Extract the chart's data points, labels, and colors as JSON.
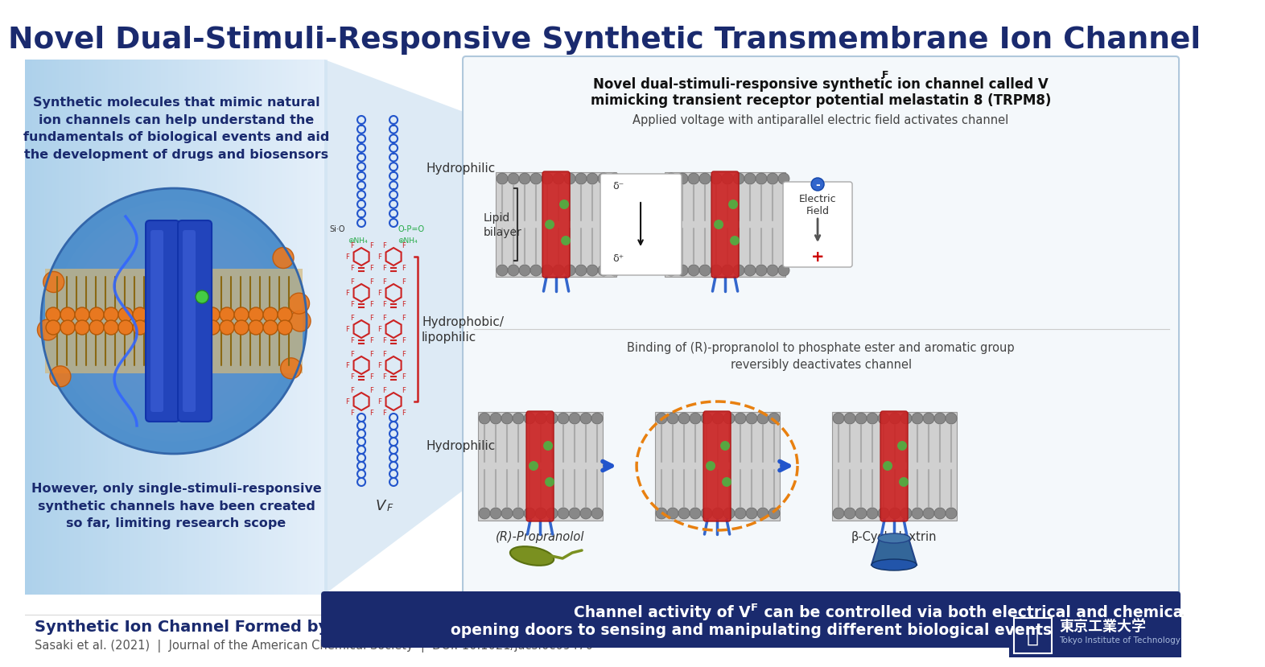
{
  "title": "Novel Dual-Stimuli-Responsive Synthetic Transmembrane Ion Channel",
  "title_color": "#1a2a6e",
  "bg_color": "#ffffff",
  "left_text_top": "Synthetic molecules that mimic natural\nion channels can help understand the\nfundamentals of biological events and aid\nthe development of drugs and biosensors",
  "left_text_bottom": "However, only single-stimuli-responsive\nsynthetic channels have been created\nso far, limiting research scope",
  "right_title_line1": "Novel dual-stimuli-responsive synthetic ion channel called V",
  "right_title_line1_sub": "F",
  "right_title_line2": "mimicking transient receptor potential melastatin 8 (TRPM8)",
  "voltage_caption": "Applied voltage with antiparallel electric field activates channel",
  "binding_caption": "Binding of (R)-propranolol to phosphate ester and aromatic group\nreversibly deactivates channel",
  "label_hydrophilic1": "Hydrophilic",
  "label_hydrophobic": "Hydrophobic/\nlipophilic",
  "label_hydrophilic2": "Hydrophilic",
  "label_vf": "V",
  "label_vf_sub": "F",
  "label_lipid": "Lipid\nbilayer",
  "label_propranolol": "(R)-Propranolol",
  "label_cyclodextrin": "β-Cyclodextrin",
  "label_electric": "Electric\nField",
  "bottom_banner_bg": "#1a2a6e",
  "bottom_banner_line1": "Channel activity of V",
  "bottom_banner_line1_sub": "F",
  "bottom_banner_line1_rest": " can be controlled via both electrical and chemical stimuli,",
  "bottom_banner_line2": "opening doors to sensing and manipulating different biological events",
  "bottom_banner_color": "#ffffff",
  "footer_title": "Synthetic Ion Channel Formed by Multiblock Amphiphile with Anisotropic Dual-Stimuli-Responsiveness",
  "footer_subtitle": "Sasaki et al. (2021)  |  Journal of the American Chemical Society  |  DOI: 10.1021/jacs.0c09470",
  "footer_title_color": "#1a2a6e",
  "footer_subtitle_color": "#555555",
  "logo_bg": "#1a2a6e",
  "logo_text1": "東京工業大学",
  "logo_text2": "Tokyo Institute of Technology",
  "left_panel_grad_left": "#b0d0e8",
  "left_panel_grad_right": "#daeaf8",
  "mol_blue": "#2255cc",
  "mol_red": "#cc2222",
  "mol_green": "#22aa44",
  "delta_neg": "δ⁻",
  "delta_pos": "δ⁺"
}
